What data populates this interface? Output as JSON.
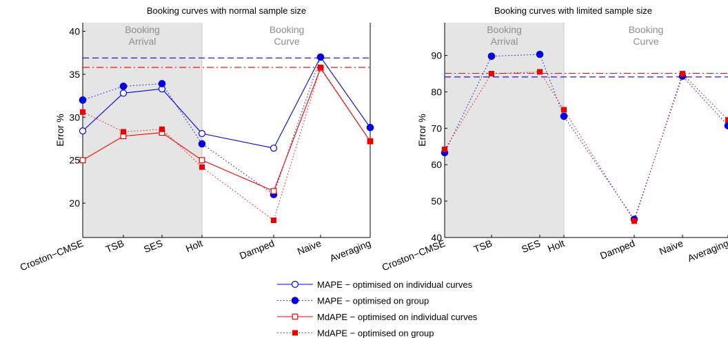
{
  "chart_data": [
    {
      "type": "line",
      "title": "Booking curves with normal sample size",
      "ylabel": "Error %",
      "xlabel": "",
      "categories": [
        "Croston−CMSE",
        "TSB",
        "SES",
        "Holt",
        "Damped",
        "Naive",
        "Averaging"
      ],
      "ylim": [
        16,
        41
      ],
      "yticks": [
        20,
        25,
        30,
        35,
        40
      ],
      "regions": [
        {
          "label_line1": "Booking",
          "label_line2": "Arrival",
          "from": 0,
          "to": 3,
          "shaded": true
        },
        {
          "label_line1": "Booking",
          "label_line2": "Curve",
          "from": 3,
          "to": 7,
          "shaded": false
        }
      ],
      "series": [
        {
          "name": "MAPE − optimised on individual curves",
          "values": [
            28.4,
            32.8,
            33.3,
            28.1,
            26.4,
            37.0,
            28.8
          ]
        },
        {
          "name": "MAPE −  optimised on group",
          "values": [
            32.0,
            33.6,
            33.9,
            26.9,
            21.0,
            37.0,
            28.8
          ]
        },
        {
          "name": "MdAPE −  optimised on individual curves",
          "values": [
            25.0,
            27.8,
            28.2,
            25.0,
            21.4,
            35.7,
            27.2
          ]
        },
        {
          "name": "MdAPE − optimised on group",
          "values": [
            30.6,
            28.3,
            28.6,
            24.2,
            18.0,
            35.8,
            27.2
          ]
        }
      ],
      "reference_lines": [
        {
          "series": "MAPE",
          "value": 36.9
        },
        {
          "series": "MdAPE",
          "value": 35.8
        }
      ]
    },
    {
      "type": "line",
      "title": "Booking curves with limited sample size",
      "ylabel": "Error %",
      "xlabel": "",
      "categories": [
        "Croston−CMSE",
        "TSB",
        "SES",
        "Holt",
        "Damped",
        "Naive",
        "Averaging"
      ],
      "ylim": [
        40,
        99
      ],
      "yticks": [
        40,
        50,
        60,
        70,
        80,
        90
      ],
      "regions": [
        {
          "label_line1": "Booking",
          "label_line2": "Arrival",
          "from": 0,
          "to": 3,
          "shaded": true
        },
        {
          "label_line1": "Booking",
          "label_line2": "Curve",
          "from": 3,
          "to": 7,
          "shaded": false
        }
      ],
      "series": [
        {
          "name": "MAPE −  optimised on group",
          "values": [
            63.3,
            89.8,
            90.3,
            73.3,
            45.0,
            84.3,
            70.7
          ]
        },
        {
          "name": "MdAPE − optimised on group",
          "values": [
            64.2,
            85.0,
            85.5,
            75.1,
            44.5,
            85.0,
            72.3
          ]
        }
      ],
      "reference_lines": [
        {
          "series": "MAPE",
          "value": 84.1
        },
        {
          "series": "MdAPE",
          "value": 85.1
        }
      ]
    }
  ],
  "legend": {
    "placement": "bottom-center",
    "entries": [
      {
        "label": "MAPE − optimised on individual curves",
        "color": "#0000dd",
        "line": "solid",
        "marker": "open-circle"
      },
      {
        "label": "MAPE −  optimised on group",
        "color": "#0000dd",
        "line": "dotted",
        "marker": "filled-circle"
      },
      {
        "label": "MdAPE −  optimised on individual curves",
        "color": "#ee0000",
        "line": "solid",
        "marker": "open-square"
      },
      {
        "label": "MdAPE − optimised on group",
        "color": "#ee0000",
        "line": "dotted",
        "marker": "filled-square"
      }
    ]
  },
  "colors": {
    "mape": "#0000dd",
    "mdape": "#ee0000",
    "shade": "#e5e5e5",
    "region_label": "#8c8c8c",
    "axis": "#000000"
  }
}
